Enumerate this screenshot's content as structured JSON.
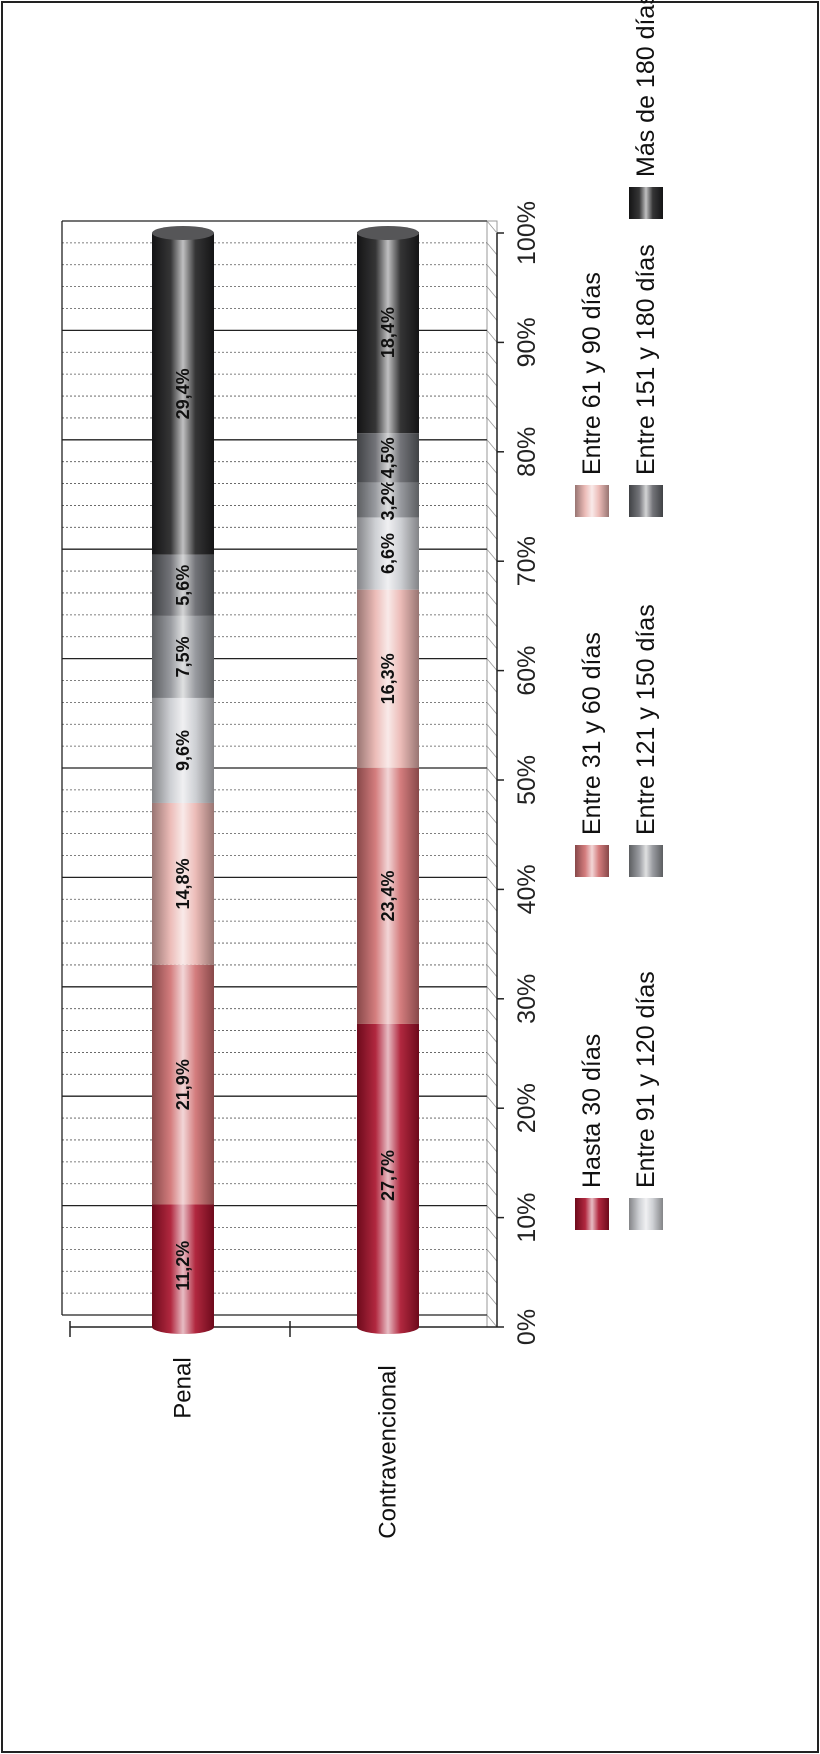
{
  "chart_data": {
    "type": "bar",
    "stacked": true,
    "normalized": true,
    "orientation": "horizontal",
    "categories": [
      "Penal",
      "Contravencional"
    ],
    "series": [
      {
        "name": "Hasta 30 días",
        "values": [
          11.2,
          27.7
        ],
        "labels": [
          "11,2%",
          "27,7%"
        ]
      },
      {
        "name": "Entre 31 y 60 días",
        "values": [
          21.9,
          23.4
        ],
        "labels": [
          "21,9%",
          "23,4%"
        ]
      },
      {
        "name": "Entre 61 y 90 días",
        "values": [
          14.8,
          16.3
        ],
        "labels": [
          "14,8%",
          "16,3%"
        ]
      },
      {
        "name": "Entre 91 y 120 días",
        "values": [
          9.6,
          6.6
        ],
        "labels": [
          "9,6%",
          "6,6%"
        ]
      },
      {
        "name": "Entre 121 y 150 días",
        "values": [
          7.5,
          3.2
        ],
        "labels": [
          "7,5%",
          "3,2%"
        ]
      },
      {
        "name": "Entre 151 y 180 días",
        "values": [
          5.6,
          4.5
        ],
        "labels": [
          "5,6%",
          "4,5%"
        ]
      },
      {
        "name": "Más de 180 días",
        "values": [
          29.4,
          18.4
        ],
        "labels": [
          "29,4%",
          "18,4%"
        ]
      }
    ],
    "ticks": [
      0,
      10,
      20,
      30,
      40,
      50,
      60,
      70,
      80,
      90,
      100
    ],
    "tick_labels": [
      "0%",
      "10%",
      "20%",
      "30%",
      "40%",
      "50%",
      "60%",
      "70%",
      "80%",
      "90%",
      "100%"
    ],
    "xlim": [
      0,
      100
    ],
    "grid": true,
    "legend_position": "bottom",
    "rotation": "chart rotated 90 degrees counter-clockwise",
    "colors": {
      "Hasta 30 días": "#a8102a",
      "Entre 31 y 60 días": "#cf6e70",
      "Entre 61 y 90 días": "#eab4b0",
      "Entre 91 y 120 días": "#c9cbcf",
      "Entre 121 y 150 días": "#8e9095",
      "Entre 151 y 180 días": "#63656a",
      "Más de 180 días": "#1e1e20"
    }
  }
}
